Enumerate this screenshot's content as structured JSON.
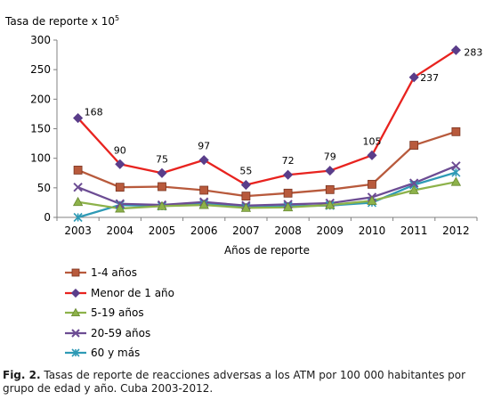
{
  "chart_data": {
    "type": "line",
    "ylabel": "Tasa de reporte x 10",
    "ylabel_sup": "5",
    "xlabel": "Años de reporte",
    "ylim": [
      0,
      300
    ],
    "yticks": [
      0,
      50,
      100,
      150,
      200,
      250,
      300
    ],
    "x": [
      "2003",
      "2004",
      "2005",
      "2006",
      "2007",
      "2008",
      "2009",
      "2010",
      "2011",
      "2012"
    ],
    "grid": false,
    "legend_position": "bottom-left",
    "series": [
      {
        "name": "1-4 años",
        "color": "#b85a3c",
        "marker": "square",
        "values": [
          80,
          51,
          52,
          46,
          36,
          41,
          47,
          56,
          122,
          145
        ]
      },
      {
        "name": "Menor de 1 año",
        "color": "#e8231f",
        "marker": "diamond",
        "values": [
          168,
          90,
          75,
          97,
          55,
          72,
          79,
          105,
          237,
          283
        ],
        "labels": [
          "168",
          "90",
          "75",
          "97",
          "55",
          "72",
          "79",
          "105",
          "237",
          "283"
        ]
      },
      {
        "name": "5-19 años",
        "color": "#8db24a",
        "marker": "triangle",
        "values": [
          26,
          15,
          19,
          21,
          16,
          17,
          21,
          28,
          46,
          60
        ]
      },
      {
        "name": "20-59 años",
        "color": "#6c4c93",
        "marker": "x",
        "values": [
          51,
          23,
          21,
          26,
          20,
          22,
          24,
          34,
          58,
          87
        ]
      },
      {
        "name": "60 y más",
        "color": "#2e9ab5",
        "marker": "star",
        "values": [
          0,
          21,
          19,
          23,
          17,
          19,
          20,
          25,
          55,
          76
        ]
      }
    ]
  },
  "caption": {
    "label": "Fig. 2.",
    "text": " Tasas de reporte de reacciones adversas a los ATM por 100 000 habitantes por grupo de edad y año. Cuba 2003-2012."
  }
}
